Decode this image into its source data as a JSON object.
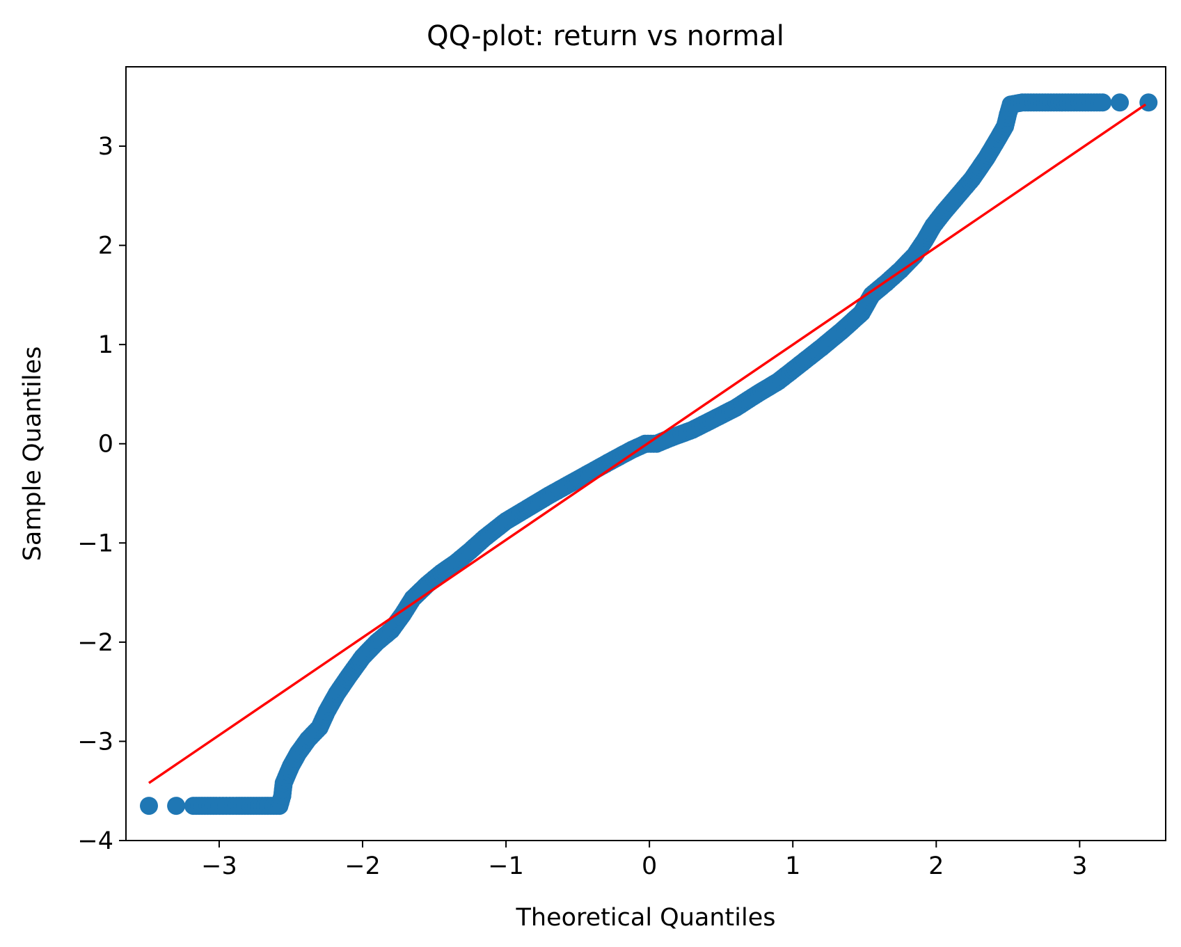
{
  "chart_data": {
    "type": "scatter",
    "title": "QQ-plot: return vs normal",
    "xlabel": "Theoretical Quantiles",
    "ylabel": "Sample Quantiles",
    "xlim": [
      -3.65,
      3.6
    ],
    "ylim": [
      -4.0,
      3.8
    ],
    "x_ticks": [
      -3,
      -2,
      -1,
      0,
      1,
      2,
      3
    ],
    "y_ticks": [
      -4,
      -3,
      -2,
      -1,
      0,
      1,
      2,
      3
    ],
    "x_tick_labels": [
      "−3",
      "−2",
      "−1",
      "0",
      "1",
      "2",
      "3"
    ],
    "y_tick_labels": [
      "−4",
      "−3",
      "−2",
      "−1",
      "0",
      "1",
      "2",
      "3"
    ],
    "grid": false,
    "series": [
      {
        "role": "sample-quantiles",
        "color": "#1f77b4",
        "points": [
          [
            -3.49,
            -3.65
          ],
          [
            -3.3,
            -3.65
          ],
          [
            -3.18,
            -3.65
          ],
          [
            -3.1,
            -3.65
          ],
          [
            -3.02,
            -3.65
          ],
          [
            -2.95,
            -3.65
          ],
          [
            -2.88,
            -3.65
          ],
          [
            -2.82,
            -3.65
          ],
          [
            -2.76,
            -3.65
          ],
          [
            -2.7,
            -3.65
          ],
          [
            -2.64,
            -3.65
          ],
          [
            -2.58,
            -3.65
          ],
          [
            -2.56,
            -3.55
          ],
          [
            -2.55,
            -3.42
          ],
          [
            -2.5,
            -3.25
          ],
          [
            -2.45,
            -3.12
          ],
          [
            -2.38,
            -2.98
          ],
          [
            -2.3,
            -2.86
          ],
          [
            -2.25,
            -2.7
          ],
          [
            -2.18,
            -2.52
          ],
          [
            -2.1,
            -2.35
          ],
          [
            -2.0,
            -2.15
          ],
          [
            -1.9,
            -2.0
          ],
          [
            -1.8,
            -1.88
          ],
          [
            -1.72,
            -1.72
          ],
          [
            -1.65,
            -1.56
          ],
          [
            -1.55,
            -1.42
          ],
          [
            -1.45,
            -1.3
          ],
          [
            -1.35,
            -1.2
          ],
          [
            -1.25,
            -1.08
          ],
          [
            -1.15,
            -0.95
          ],
          [
            -1.0,
            -0.78
          ],
          [
            -0.85,
            -0.65
          ],
          [
            -0.7,
            -0.52
          ],
          [
            -0.55,
            -0.4
          ],
          [
            -0.4,
            -0.28
          ],
          [
            -0.25,
            -0.16
          ],
          [
            -0.12,
            -0.06
          ],
          [
            -0.03,
            0.0
          ],
          [
            0.05,
            0.0
          ],
          [
            0.15,
            0.06
          ],
          [
            0.3,
            0.14
          ],
          [
            0.45,
            0.25
          ],
          [
            0.6,
            0.36
          ],
          [
            0.75,
            0.5
          ],
          [
            0.9,
            0.63
          ],
          [
            1.05,
            0.8
          ],
          [
            1.2,
            0.97
          ],
          [
            1.35,
            1.15
          ],
          [
            1.48,
            1.32
          ],
          [
            1.55,
            1.5
          ],
          [
            1.65,
            1.62
          ],
          [
            1.75,
            1.75
          ],
          [
            1.85,
            1.9
          ],
          [
            1.92,
            2.05
          ],
          [
            1.98,
            2.2
          ],
          [
            2.05,
            2.33
          ],
          [
            2.15,
            2.5
          ],
          [
            2.25,
            2.67
          ],
          [
            2.35,
            2.88
          ],
          [
            2.42,
            3.05
          ],
          [
            2.48,
            3.2
          ],
          [
            2.5,
            3.32
          ],
          [
            2.52,
            3.42
          ],
          [
            2.6,
            3.44
          ],
          [
            2.68,
            3.44
          ],
          [
            2.76,
            3.44
          ],
          [
            2.84,
            3.44
          ],
          [
            2.92,
            3.44
          ],
          [
            3.0,
            3.44
          ],
          [
            3.08,
            3.44
          ],
          [
            3.16,
            3.44
          ],
          [
            3.28,
            3.44
          ],
          [
            3.48,
            3.44
          ]
        ]
      },
      {
        "role": "reference-line",
        "color": "#ff0000",
        "points": [
          [
            -3.49,
            -3.42
          ],
          [
            3.46,
            3.42
          ]
        ]
      }
    ]
  }
}
